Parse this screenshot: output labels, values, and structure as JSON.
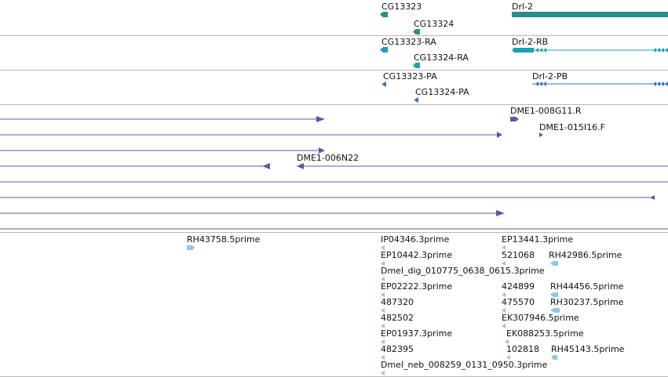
{
  "colors": {
    "gene": "#2e8b8b",
    "transcript": "#1aa0b8",
    "protein": "#3a6fc8",
    "clone": "#6a4fa8",
    "est": "#8ec8e8",
    "divider": "#b8b8b8"
  },
  "tracks": {
    "genes": {
      "labels": [
        "CG13323",
        "CG13324",
        "Drl-2"
      ]
    },
    "transcripts": {
      "labels": [
        "CG13323-RA",
        "CG13324-RA",
        "Drl-2-RB"
      ]
    },
    "proteins": {
      "labels": [
        "CG13323-PA",
        "CG13324-PA",
        "Drl-2-PB"
      ]
    },
    "clones": {
      "labels": [
        "DME1-008G11.R",
        "DME1-015I16.F",
        "DME1-006N22"
      ]
    },
    "ests": {
      "labels": [
        "RH43758.5prime",
        "IP04346.3prime",
        "EP13441.3prime",
        "EP10442.3prime",
        "521068",
        "RH42986.5prime",
        "Dmel_dig_010775_0638_0615.3prime",
        "EP02222.3prime",
        "424899",
        "RH44456.5prime",
        "487320",
        "475570",
        "RH30237.5prime",
        "482502",
        "EK307946.5prime",
        "EP01937.3prime",
        "EK088253.5prime",
        "482395",
        "102818",
        "RH45143.5prime",
        "Dmel_neb_008259_0131_0950.3prime"
      ]
    }
  }
}
